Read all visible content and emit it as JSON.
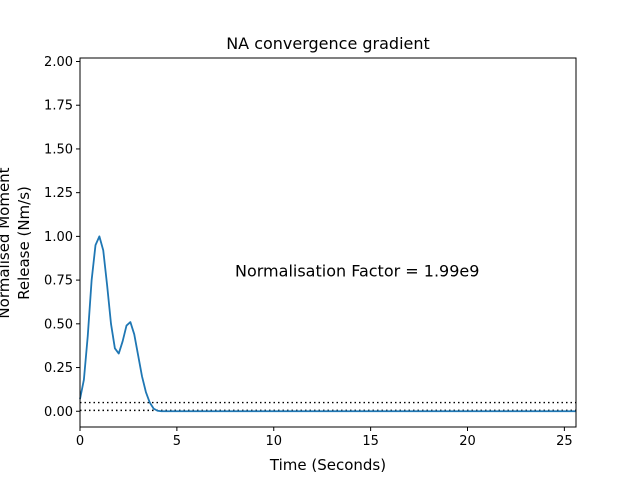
{
  "chart_data": {
    "type": "line",
    "title": "NA convergence gradient",
    "xlabel": "Time (Seconds)",
    "ylabel_line1": "Normalised Moment",
    "ylabel_line2": "Release (Nm/s)",
    "xlim": [
      0,
      25.6
    ],
    "ylim": [
      -0.09,
      2.02
    ],
    "x_ticks": [
      0,
      5,
      10,
      15,
      20,
      25
    ],
    "x_tick_labels": [
      "0",
      "5",
      "10",
      "15",
      "20",
      "25"
    ],
    "y_ticks": [
      0.0,
      0.25,
      0.5,
      0.75,
      1.0,
      1.25,
      1.5,
      1.75,
      2.0
    ],
    "y_tick_labels": [
      "0.00",
      "0.25",
      "0.50",
      "0.75",
      "1.00",
      "1.25",
      "1.50",
      "1.75",
      "2.00"
    ],
    "annotation": "Normalisation Factor = 1.99e9",
    "annotation_position": {
      "x": 8,
      "y": 0.8
    },
    "grid": false,
    "series": [
      {
        "color": "#1f77b4",
        "x": [
          0,
          0.2,
          0.4,
          0.6,
          0.8,
          1.0,
          1.2,
          1.4,
          1.6,
          1.8,
          2.0,
          2.2,
          2.4,
          2.6,
          2.8,
          3.0,
          3.2,
          3.4,
          3.6,
          3.8,
          4.0,
          4.2,
          5,
          10,
          15,
          20,
          25.6
        ],
        "y": [
          0.07,
          0.18,
          0.43,
          0.75,
          0.95,
          1.0,
          0.92,
          0.72,
          0.5,
          0.36,
          0.33,
          0.4,
          0.49,
          0.51,
          0.44,
          0.32,
          0.2,
          0.11,
          0.05,
          0.015,
          0.003,
          0.0,
          0.0,
          0.0,
          0.0,
          0.0,
          0.0
        ]
      }
    ],
    "reference_lines": [
      {
        "y": 0.05,
        "style": "dotted",
        "color": "#000000"
      },
      {
        "y": 0.005,
        "style": "dotted",
        "color": "#000000"
      }
    ],
    "line_color": "#1f77b4"
  }
}
